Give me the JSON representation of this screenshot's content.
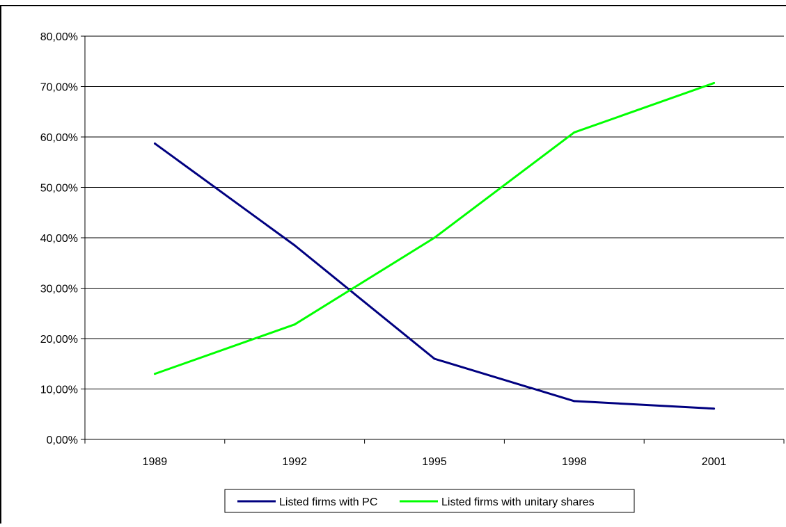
{
  "chart_data": {
    "type": "line",
    "categories": [
      "1989",
      "1992",
      "1995",
      "1998",
      "2001"
    ],
    "series": [
      {
        "name": "Listed firms with PC",
        "values": [
          0.587,
          0.385,
          0.16,
          0.076,
          0.061
        ],
        "color": "#000080"
      },
      {
        "name": "Listed firms with unitary shares",
        "values": [
          0.13,
          0.228,
          0.4,
          0.609,
          0.707
        ],
        "color": "#00ff00"
      }
    ],
    "y_ticks": [
      "0,00%",
      "10,00%",
      "20,00%",
      "30,00%",
      "40,00%",
      "50,00%",
      "60,00%",
      "70,00%",
      "80,00%"
    ],
    "ylim": [
      0,
      0.8
    ],
    "y_step": 0.1,
    "title": "",
    "xlabel": "",
    "ylabel": "",
    "grid": true,
    "legend_position": "bottom",
    "line_colors": {
      "axis": "#000000",
      "grid": "#000000",
      "frame": "#000000"
    }
  }
}
